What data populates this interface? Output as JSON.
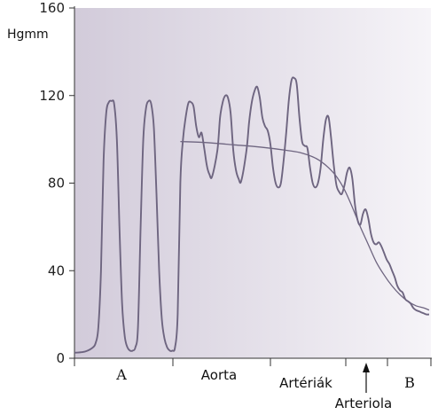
{
  "chart_data": {
    "type": "line",
    "title": "",
    "ylabel": "Hgmm",
    "ylim": [
      0,
      160
    ],
    "y_ticks": [
      0,
      40,
      80,
      120,
      160
    ],
    "x_regions": [
      {
        "label": "A",
        "font": "serif"
      },
      {
        "label": "Aorta",
        "font": "sans"
      },
      {
        "label": "Artériák",
        "font": "sans"
      },
      {
        "label": "B",
        "font": "serif"
      }
    ],
    "annotation": {
      "label": "Arteriola",
      "marker": "up-arrow"
    },
    "background_gradient": [
      "#d2cbda",
      "#f6f4f8"
    ],
    "line_color": "#6e6580",
    "grid": false,
    "legend": "none",
    "series": [
      {
        "role": "pulsatile-pressure",
        "points": [
          [
            0,
            2.5
          ],
          [
            3,
            2.8
          ],
          [
            5,
            3.5
          ],
          [
            7,
            5
          ],
          [
            8,
            7
          ],
          [
            9,
            14
          ],
          [
            10,
            40
          ],
          [
            11,
            90
          ],
          [
            12,
            112
          ],
          [
            13,
            117
          ],
          [
            14,
            117.5
          ],
          [
            15,
            116
          ],
          [
            16,
            100
          ],
          [
            17,
            60
          ],
          [
            18,
            25
          ],
          [
            19,
            10
          ],
          [
            20,
            5
          ],
          [
            21,
            3.5
          ],
          [
            22,
            3.5
          ],
          [
            23,
            5
          ],
          [
            24,
            14
          ],
          [
            25,
            60
          ],
          [
            26,
            100
          ],
          [
            27,
            114
          ],
          [
            28,
            117.5
          ],
          [
            29,
            116
          ],
          [
            30,
            105
          ],
          [
            31,
            75
          ],
          [
            32,
            40
          ],
          [
            33,
            18
          ],
          [
            34,
            9
          ],
          [
            35,
            5
          ],
          [
            36,
            3.5
          ],
          [
            37,
            3.5
          ],
          [
            38,
            5
          ],
          [
            39,
            20
          ],
          [
            40,
            80
          ],
          [
            41,
            100
          ],
          [
            42,
            110
          ],
          [
            43,
            116.5
          ],
          [
            44,
            117
          ],
          [
            45,
            115
          ],
          [
            46,
            106
          ],
          [
            47,
            101
          ],
          [
            48,
            103
          ],
          [
            49,
            96
          ],
          [
            50,
            88
          ],
          [
            51,
            84
          ],
          [
            52,
            83
          ],
          [
            54,
            95
          ],
          [
            55,
            110
          ],
          [
            56,
            117
          ],
          [
            57,
            120
          ],
          [
            58,
            119
          ],
          [
            59,
            112
          ],
          [
            60,
            95
          ],
          [
            61,
            86
          ],
          [
            62,
            82
          ],
          [
            63,
            81
          ],
          [
            65,
            95
          ],
          [
            66,
            108
          ],
          [
            67,
            117
          ],
          [
            68,
            122
          ],
          [
            69,
            124
          ],
          [
            70,
            119
          ],
          [
            71,
            110
          ],
          [
            72,
            106
          ],
          [
            73,
            104
          ],
          [
            74,
            98
          ],
          [
            75,
            87
          ],
          [
            76,
            80
          ],
          [
            77,
            78
          ],
          [
            78,
            80
          ],
          [
            79,
            90
          ],
          [
            80,
            103
          ],
          [
            81,
            118
          ],
          [
            82,
            127
          ],
          [
            83,
            128
          ],
          [
            84,
            125
          ],
          [
            85,
            110
          ],
          [
            86,
            99
          ],
          [
            87,
            97
          ],
          [
            88,
            96
          ],
          [
            89,
            87
          ],
          [
            90,
            80
          ],
          [
            91,
            78
          ],
          [
            92,
            80
          ],
          [
            93,
            87
          ],
          [
            94,
            100
          ],
          [
            95,
            109
          ],
          [
            96,
            110
          ],
          [
            97,
            100
          ],
          [
            98,
            88
          ],
          [
            99,
            79
          ],
          [
            100,
            76
          ],
          [
            101,
            75
          ],
          [
            102,
            79
          ],
          [
            103,
            85
          ],
          [
            104,
            87
          ],
          [
            105,
            82
          ],
          [
            106,
            70
          ],
          [
            107,
            63
          ],
          [
            108,
            61
          ],
          [
            109,
            66
          ],
          [
            110,
            68
          ],
          [
            111,
            64
          ],
          [
            112,
            57
          ],
          [
            113,
            53
          ],
          [
            114,
            52
          ],
          [
            115,
            53
          ],
          [
            116,
            51
          ],
          [
            117,
            48
          ],
          [
            118,
            45
          ],
          [
            119,
            43
          ],
          [
            120,
            40
          ],
          [
            121,
            37
          ],
          [
            122,
            33
          ],
          [
            123,
            31
          ],
          [
            124,
            30
          ],
          [
            125,
            27
          ],
          [
            126,
            26
          ],
          [
            127,
            25
          ],
          [
            128,
            23
          ],
          [
            129,
            22
          ],
          [
            130,
            21.5
          ],
          [
            131,
            21
          ],
          [
            132,
            20.5
          ],
          [
            133,
            20
          ],
          [
            134,
            20
          ]
        ]
      },
      {
        "role": "mean-pressure",
        "points": [
          [
            40,
            99
          ],
          [
            50,
            98.5
          ],
          [
            60,
            97.5
          ],
          [
            70,
            96.5
          ],
          [
            80,
            95
          ],
          [
            85,
            94
          ],
          [
            90,
            92
          ],
          [
            93,
            90
          ],
          [
            96,
            87
          ],
          [
            99,
            83
          ],
          [
            102,
            77
          ],
          [
            105,
            69
          ],
          [
            108,
            60
          ],
          [
            111,
            52
          ],
          [
            114,
            44
          ],
          [
            117,
            38
          ],
          [
            120,
            33
          ],
          [
            123,
            29
          ],
          [
            126,
            26
          ],
          [
            129,
            24
          ],
          [
            132,
            23
          ],
          [
            134,
            22
          ]
        ]
      }
    ]
  }
}
